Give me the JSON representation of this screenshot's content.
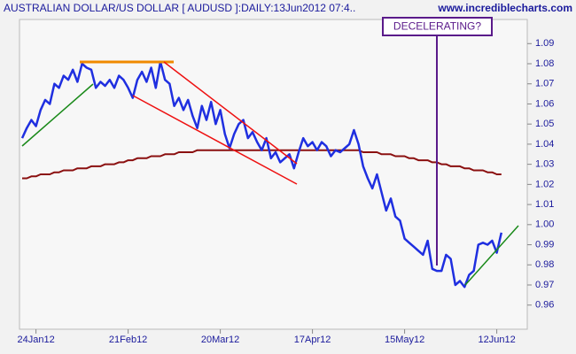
{
  "chart_data": {
    "type": "line",
    "title": "AUSTRALIAN DOLLAR/US DOLLAR [ AUDUSD ]:DAILY:13Jun2012 07:4..",
    "source": "www.incrediblecharts.com",
    "annotation": "DECELERATING?",
    "categories": [
      null,
      null,
      null,
      "24Jan12",
      null,
      null,
      null,
      null,
      null,
      null,
      null,
      null,
      null,
      null,
      null,
      null,
      null,
      null,
      null,
      null,
      null,
      null,
      null,
      "21Feb12",
      null,
      null,
      null,
      null,
      null,
      null,
      null,
      null,
      null,
      null,
      null,
      null,
      null,
      null,
      null,
      null,
      null,
      null,
      null,
      "20Mar12",
      null,
      null,
      null,
      null,
      null,
      null,
      null,
      null,
      null,
      null,
      null,
      null,
      null,
      null,
      null,
      null,
      null,
      null,
      null,
      "17Apr12",
      null,
      null,
      null,
      null,
      null,
      null,
      null,
      null,
      null,
      null,
      null,
      null,
      null,
      null,
      null,
      null,
      null,
      null,
      null,
      "15May12",
      null,
      null,
      null,
      null,
      null,
      null,
      null,
      null,
      null,
      null,
      null,
      null,
      null,
      null,
      null,
      null,
      null,
      null,
      null,
      "12Jun12",
      null
    ],
    "series": [
      {
        "color": "#1f2fe0",
        "values": [
          1.043,
          1.048,
          1.052,
          1.049,
          1.057,
          1.062,
          1.06,
          1.07,
          1.068,
          1.074,
          1.072,
          1.077,
          1.071,
          1.08,
          1.078,
          1.077,
          1.068,
          1.071,
          1.069,
          1.072,
          1.068,
          1.074,
          1.072,
          1.068,
          1.063,
          1.072,
          1.076,
          1.071,
          1.078,
          1.068,
          1.081,
          1.072,
          1.07,
          1.059,
          1.063,
          1.057,
          1.062,
          1.054,
          1.048,
          1.059,
          1.052,
          1.061,
          1.05,
          1.057,
          1.045,
          1.038,
          1.045,
          1.05,
          1.052,
          1.043,
          1.046,
          1.041,
          1.037,
          1.043,
          1.033,
          1.036,
          1.031,
          1.033,
          1.035,
          1.028,
          1.036,
          1.043,
          1.039,
          1.041,
          1.037,
          1.041,
          1.039,
          1.034,
          1.037,
          1.036,
          1.038,
          1.04,
          1.047,
          1.04,
          1.029,
          1.023,
          1.018,
          1.025,
          1.016,
          1.007,
          1.013,
          1.004,
          1.002,
          0.993,
          0.991,
          0.989,
          0.987,
          0.985,
          0.992,
          0.978,
          0.977,
          0.977,
          0.985,
          0.983,
          0.97,
          0.972,
          0.969,
          0.975,
          0.977,
          0.99,
          0.991,
          0.99,
          0.992,
          0.986,
          0.996
        ]
      },
      {
        "color": "#8b1010",
        "values": [
          1.023,
          1.023,
          1.024,
          1.024,
          1.025,
          1.025,
          1.025,
          1.026,
          1.026,
          1.027,
          1.027,
          1.027,
          1.028,
          1.028,
          1.028,
          1.029,
          1.029,
          1.029,
          1.03,
          1.03,
          1.03,
          1.031,
          1.031,
          1.032,
          1.032,
          1.033,
          1.033,
          1.033,
          1.034,
          1.034,
          1.034,
          1.035,
          1.035,
          1.035,
          1.036,
          1.036,
          1.036,
          1.036,
          1.037,
          1.037,
          1.037,
          1.037,
          1.037,
          1.037,
          1.037,
          1.037,
          1.037,
          1.037,
          1.037,
          1.037,
          1.037,
          1.037,
          1.037,
          1.037,
          1.037,
          1.037,
          1.037,
          1.037,
          1.037,
          1.037,
          1.037,
          1.037,
          1.037,
          1.037,
          1.037,
          1.037,
          1.037,
          1.037,
          1.037,
          1.037,
          1.037,
          1.037,
          1.037,
          1.037,
          1.036,
          1.036,
          1.036,
          1.036,
          1.035,
          1.035,
          1.035,
          1.034,
          1.034,
          1.034,
          1.033,
          1.033,
          1.032,
          1.032,
          1.032,
          1.031,
          1.031,
          1.03,
          1.03,
          1.029,
          1.029,
          1.029,
          1.028,
          1.028,
          1.027,
          1.027,
          1.027,
          1.026,
          1.026,
          1.025,
          1.025
        ]
      }
    ],
    "ylim": [
      0.948,
      1.102
    ],
    "yticks": [
      0.96,
      0.97,
      0.98,
      0.99,
      {
        "value": 1,
        "label": "1.00"
      },
      1.01,
      1.02,
      1.03,
      1.04,
      1.05,
      1.06,
      1.07,
      1.08,
      1.09
    ]
  }
}
